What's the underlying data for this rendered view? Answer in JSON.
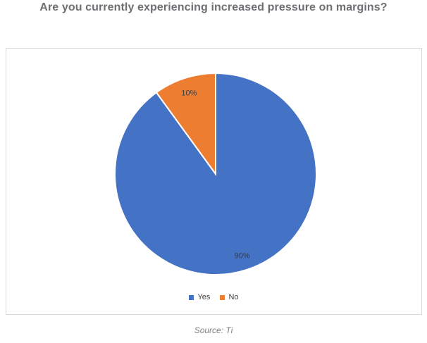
{
  "page": {
    "title": "Are you currently experiencing increased pressure on margins?",
    "source_note": "Source: Ti"
  },
  "chart_data": {
    "type": "pie",
    "title": "Are you currently experiencing increased pressure on margins?",
    "categories": [
      "Yes",
      "No"
    ],
    "values": [
      90,
      10
    ],
    "data_labels": [
      "90%",
      "10%"
    ],
    "colors": [
      "#4472c4",
      "#ed7d31"
    ],
    "slice_border_color": "#ffffff",
    "start_angle_deg": 0,
    "direction": "clockwise",
    "legend_position": "bottom",
    "source_note": "Source: Ti"
  }
}
